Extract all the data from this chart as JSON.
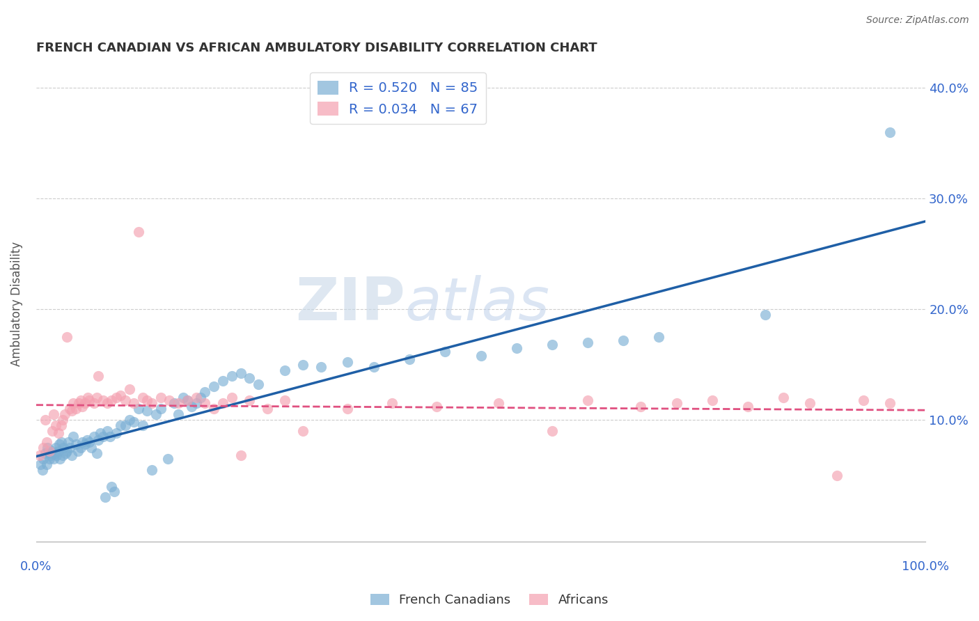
{
  "title": "FRENCH CANADIAN VS AFRICAN AMBULATORY DISABILITY CORRELATION CHART",
  "source": "Source: ZipAtlas.com",
  "ylabel": "Ambulatory Disability",
  "xlim": [
    0,
    1.0
  ],
  "ylim": [
    -0.01,
    0.42
  ],
  "x_ticks": [
    0.0,
    0.1,
    0.2,
    0.3,
    0.4,
    0.5,
    0.6,
    0.7,
    0.8,
    0.9,
    1.0
  ],
  "y_ticks": [
    0.0,
    0.1,
    0.2,
    0.3,
    0.4
  ],
  "y_tick_labels": [
    "",
    "10.0%",
    "20.0%",
    "30.0%",
    "40.0%"
  ],
  "r_french": 0.52,
  "n_french": 85,
  "r_african": 0.034,
  "n_african": 67,
  "french_color": "#7BAFD4",
  "african_color": "#F4A0B0",
  "french_line_color": "#1F5FA6",
  "african_line_color": "#E05080",
  "french_x": [
    0.005,
    0.007,
    0.008,
    0.01,
    0.012,
    0.013,
    0.015,
    0.016,
    0.017,
    0.018,
    0.02,
    0.021,
    0.022,
    0.023,
    0.025,
    0.026,
    0.027,
    0.028,
    0.03,
    0.031,
    0.033,
    0.035,
    0.036,
    0.038,
    0.04,
    0.042,
    0.045,
    0.047,
    0.05,
    0.052,
    0.055,
    0.057,
    0.06,
    0.062,
    0.065,
    0.068,
    0.07,
    0.072,
    0.075,
    0.078,
    0.08,
    0.083,
    0.085,
    0.088,
    0.09,
    0.095,
    0.1,
    0.105,
    0.11,
    0.115,
    0.12,
    0.125,
    0.13,
    0.135,
    0.14,
    0.148,
    0.155,
    0.16,
    0.165,
    0.17,
    0.175,
    0.18,
    0.185,
    0.19,
    0.2,
    0.21,
    0.22,
    0.23,
    0.24,
    0.25,
    0.28,
    0.3,
    0.32,
    0.35,
    0.38,
    0.42,
    0.46,
    0.5,
    0.54,
    0.58,
    0.62,
    0.66,
    0.7,
    0.82,
    0.96
  ],
  "french_y": [
    0.06,
    0.055,
    0.065,
    0.07,
    0.06,
    0.075,
    0.065,
    0.07,
    0.068,
    0.072,
    0.065,
    0.07,
    0.075,
    0.068,
    0.072,
    0.078,
    0.065,
    0.08,
    0.068,
    0.075,
    0.07,
    0.072,
    0.08,
    0.075,
    0.068,
    0.085,
    0.078,
    0.072,
    0.075,
    0.08,
    0.078,
    0.082,
    0.08,
    0.075,
    0.085,
    0.07,
    0.082,
    0.088,
    0.085,
    0.03,
    0.09,
    0.085,
    0.04,
    0.035,
    0.088,
    0.095,
    0.095,
    0.1,
    0.098,
    0.11,
    0.095,
    0.108,
    0.055,
    0.105,
    0.11,
    0.065,
    0.115,
    0.105,
    0.12,
    0.118,
    0.112,
    0.115,
    0.12,
    0.125,
    0.13,
    0.135,
    0.14,
    0.142,
    0.138,
    0.132,
    0.145,
    0.15,
    0.148,
    0.152,
    0.148,
    0.155,
    0.162,
    0.158,
    0.165,
    0.168,
    0.17,
    0.172,
    0.175,
    0.195,
    0.36
  ],
  "african_x": [
    0.004,
    0.008,
    0.01,
    0.012,
    0.015,
    0.018,
    0.02,
    0.022,
    0.025,
    0.028,
    0.03,
    0.032,
    0.035,
    0.038,
    0.04,
    0.042,
    0.045,
    0.048,
    0.05,
    0.052,
    0.055,
    0.058,
    0.06,
    0.065,
    0.068,
    0.07,
    0.075,
    0.08,
    0.085,
    0.09,
    0.095,
    0.1,
    0.105,
    0.11,
    0.115,
    0.12,
    0.125,
    0.13,
    0.14,
    0.15,
    0.16,
    0.17,
    0.18,
    0.19,
    0.2,
    0.21,
    0.22,
    0.23,
    0.24,
    0.26,
    0.28,
    0.3,
    0.35,
    0.4,
    0.45,
    0.52,
    0.58,
    0.62,
    0.68,
    0.72,
    0.76,
    0.8,
    0.84,
    0.87,
    0.9,
    0.93,
    0.96
  ],
  "african_y": [
    0.068,
    0.075,
    0.1,
    0.08,
    0.072,
    0.09,
    0.105,
    0.095,
    0.088,
    0.095,
    0.1,
    0.105,
    0.175,
    0.11,
    0.108,
    0.115,
    0.11,
    0.115,
    0.118,
    0.112,
    0.115,
    0.12,
    0.118,
    0.115,
    0.12,
    0.14,
    0.118,
    0.115,
    0.118,
    0.12,
    0.122,
    0.118,
    0.128,
    0.115,
    0.27,
    0.12,
    0.118,
    0.115,
    0.12,
    0.118,
    0.115,
    0.118,
    0.12,
    0.115,
    0.11,
    0.115,
    0.12,
    0.068,
    0.118,
    0.11,
    0.118,
    0.09,
    0.11,
    0.115,
    0.112,
    0.115,
    0.09,
    0.118,
    0.112,
    0.115,
    0.118,
    0.112,
    0.12,
    0.115,
    0.05,
    0.118,
    0.115
  ]
}
